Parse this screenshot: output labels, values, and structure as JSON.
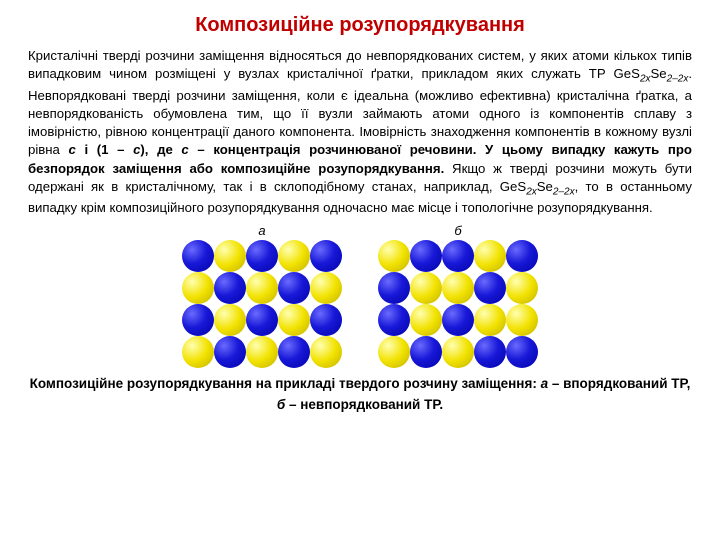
{
  "title": "Композиційне розупорядкування",
  "paragraph_parts": [
    {
      "t": "Кристалічні тверді розчини заміщення відносяться до невпорядкованих систем, у яких атоми кількох типів випадковим чином розміщені у вузлах кристалічної ґратки, прикладом яких служать ТР GeS"
    },
    {
      "t": "2",
      "cls": "sub i"
    },
    {
      "t": "x",
      "cls": "sub i"
    },
    {
      "t": "Se"
    },
    {
      "t": "2–2",
      "cls": "sub i"
    },
    {
      "t": "x",
      "cls": "sub i"
    },
    {
      "t": ". Невпорядковані тверді розчини заміщення, коли є ідеальна (можливо ефективна) кристалічна ґратка, а невпорядкованість обумовлена тим, що її вузли займають атоми одного із компонентів сплаву з імовірністю, рівною концентрації даного компонента. Імовірність знаходження компонентів в кожному вузлі рівна "
    },
    {
      "t": "с",
      "cls": "bi"
    },
    {
      "t": " і (1 – ",
      "cls": "b"
    },
    {
      "t": "с",
      "cls": "bi"
    },
    {
      "t": "), де ",
      "cls": "b"
    },
    {
      "t": "с",
      "cls": "bi"
    },
    {
      "t": " – концентрація розчинюваної речовини. У цьому випадку кажуть про безпорядок заміщення або композиційне розупорядкування.",
      "cls": "b"
    },
    {
      "t": " Якщо ж тверді розчини можуть бути одержані як в кристалічному, так і в склоподібному станах, наприклад, GeS"
    },
    {
      "t": "2",
      "cls": "sub i"
    },
    {
      "t": "x",
      "cls": "sub i"
    },
    {
      "t": "Se"
    },
    {
      "t": "2–2",
      "cls": "sub i"
    },
    {
      "t": "x",
      "cls": "sub i"
    },
    {
      "t": ", то в останньому випадку крім композиційного розупорядкування одночасно має місце і топологічне розупорядкування."
    }
  ],
  "diagram_a": {
    "label": "а",
    "rows": 4,
    "cols": 5,
    "cells": [
      "b",
      "y",
      "b",
      "y",
      "b",
      "y",
      "b",
      "y",
      "b",
      "y",
      "b",
      "y",
      "b",
      "y",
      "b",
      "y",
      "b",
      "y",
      "b",
      "y"
    ]
  },
  "diagram_b": {
    "label": "б",
    "rows": 4,
    "cols": 5,
    "cells": [
      "y",
      "b",
      "b",
      "y",
      "b",
      "b",
      "y",
      "y",
      "b",
      "y",
      "b",
      "y",
      "b",
      "y",
      "y",
      "y",
      "b",
      "y",
      "b",
      "b"
    ]
  },
  "caption_parts": [
    {
      "t": "Композиційне розупорядкування на прикладі твердого розчину заміщення: "
    },
    {
      "t": "а",
      "cls": "i"
    },
    {
      "t": " – впорядкований ТР, "
    },
    {
      "t": "б",
      "cls": "i"
    },
    {
      "t": " – невпорядкований ТР."
    }
  ],
  "colors": {
    "title": "#c00000",
    "blue": "#0000c8",
    "yellow": "#e8d800",
    "bg": "#ffffff"
  }
}
